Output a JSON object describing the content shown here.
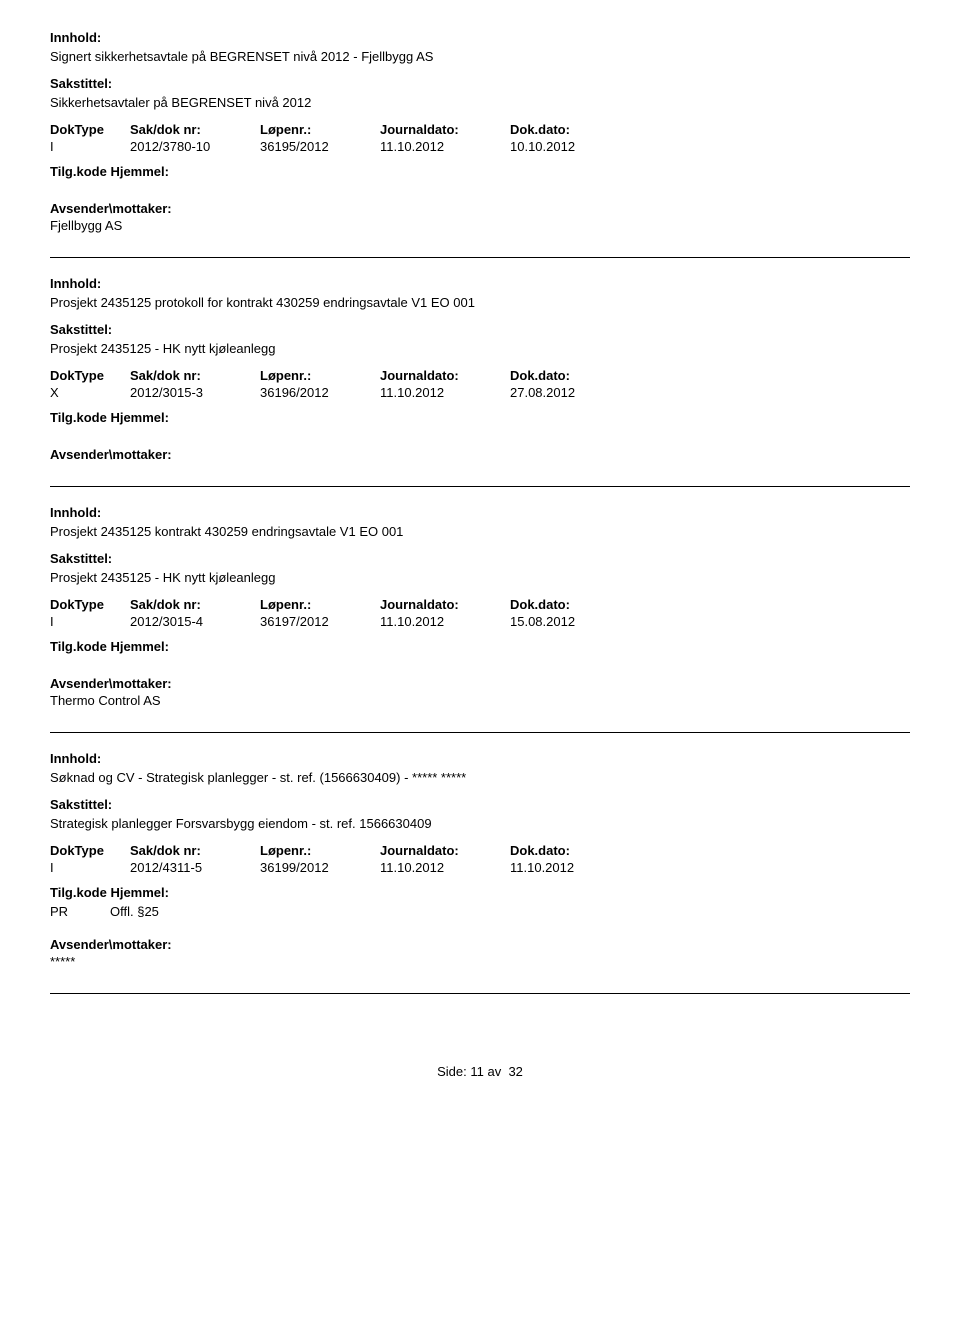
{
  "labels": {
    "innhold": "Innhold:",
    "sakstittel": "Sakstittel:",
    "doktype": "DokType",
    "saknr": "Sak/dok nr:",
    "lopenr": "Løpenr.:",
    "journaldato": "Journaldato:",
    "dokdato": "Dok.dato:",
    "tilgkode": "Tilg.kode",
    "hjemmel": "Hjemmel:",
    "avsender": "Avsender\\mottaker:"
  },
  "entries": [
    {
      "innhold": "Signert sikkerhetsavtale på BEGRENSET nivå 2012 - Fjellbygg AS",
      "sakstittel": "Sikkerhetsavtaler på BEGRENSET nivå 2012",
      "doktype": "I",
      "saknr": "2012/3780-10",
      "lopenr": "36195/2012",
      "jdato": "11.10.2012",
      "ddato": "10.10.2012",
      "tilgkode": "",
      "hjemmel": "",
      "avsender": "Fjellbygg AS"
    },
    {
      "innhold": "Prosjekt 2435125 protokoll for kontrakt 430259 endringsavtale V1 EO 001",
      "sakstittel": "Prosjekt 2435125 - HK nytt kjøleanlegg",
      "doktype": "X",
      "saknr": "2012/3015-3",
      "lopenr": "36196/2012",
      "jdato": "11.10.2012",
      "ddato": "27.08.2012",
      "tilgkode": "",
      "hjemmel": "",
      "avsender": ""
    },
    {
      "innhold": "Prosjekt 2435125 kontrakt 430259 endringsavtale V1 EO 001",
      "sakstittel": "Prosjekt 2435125 - HK nytt kjøleanlegg",
      "doktype": "I",
      "saknr": "2012/3015-4",
      "lopenr": "36197/2012",
      "jdato": "11.10.2012",
      "ddato": "15.08.2012",
      "tilgkode": "",
      "hjemmel": "",
      "avsender": "Thermo Control AS"
    },
    {
      "innhold": "Søknad og CV - Strategisk planlegger - st. ref. (1566630409) - ***** *****",
      "sakstittel": "Strategisk planlegger Forsvarsbygg eiendom - st. ref. 1566630409",
      "doktype": "I",
      "saknr": "2012/4311-5",
      "lopenr": "36199/2012",
      "jdato": "11.10.2012",
      "ddato": "11.10.2012",
      "tilgkode": "PR",
      "hjemmel": "Offl. §25",
      "avsender": "*****"
    }
  ],
  "pager": {
    "label": "Side:",
    "current": "11",
    "sep": "av",
    "total": "32"
  }
}
